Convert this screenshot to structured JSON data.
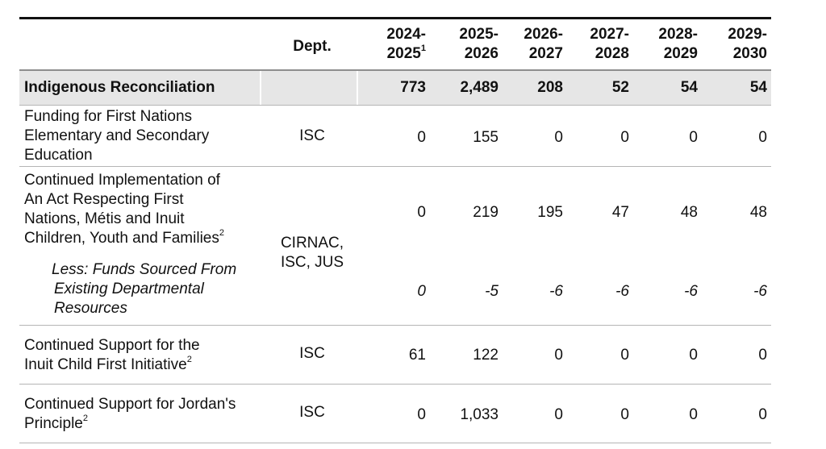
{
  "header": {
    "dept": "Dept.",
    "years": [
      {
        "top": "2024-",
        "bottom": "2025",
        "note": "1"
      },
      {
        "top": "2025-",
        "bottom": "2026",
        "note": ""
      },
      {
        "top": "2026-",
        "bottom": "2027",
        "note": ""
      },
      {
        "top": "2027-",
        "bottom": "2028",
        "note": ""
      },
      {
        "top": "2028-",
        "bottom": "2029",
        "note": ""
      },
      {
        "top": "2029-",
        "bottom": "2030",
        "note": ""
      }
    ]
  },
  "section": {
    "label": "Indigenous Reconciliation",
    "dept": "",
    "values": [
      "773",
      "2,489",
      "208",
      "52",
      "54",
      "54"
    ]
  },
  "rows": [
    {
      "lines": [
        "Funding for First Nations",
        "Elementary and Secondary",
        "Education"
      ],
      "note": "",
      "dept": "ISC",
      "values": [
        "0",
        "155",
        "0",
        "0",
        "0",
        "0"
      ]
    },
    {
      "lines": [
        "Continued Implementation of",
        "An Act Respecting First",
        "Nations, Métis and Inuit",
        "Children, Youth and Families"
      ],
      "note": "2",
      "dept_lines": [
        "CIRNAC,",
        "ISC, JUS"
      ],
      "values": [
        "0",
        "219",
        "195",
        "47",
        "48",
        "48"
      ]
    },
    {
      "lines": [
        "Less: Funds Sourced From",
        "Existing Departmental",
        "Resources"
      ],
      "note": "",
      "values": [
        "0",
        "-5",
        "-6",
        "-6",
        "-6",
        "-6"
      ]
    },
    {
      "lines": [
        "Continued Support for the",
        "Inuit Child First Initiative"
      ],
      "note": "2",
      "dept": "ISC",
      "values": [
        "61",
        "122",
        "0",
        "0",
        "0",
        "0"
      ]
    },
    {
      "lines": [
        "Continued Support for Jordan's",
        "Principle"
      ],
      "note": "2",
      "dept": "ISC",
      "values": [
        "0",
        "1,033",
        "0",
        "0",
        "0",
        "0"
      ]
    }
  ]
}
